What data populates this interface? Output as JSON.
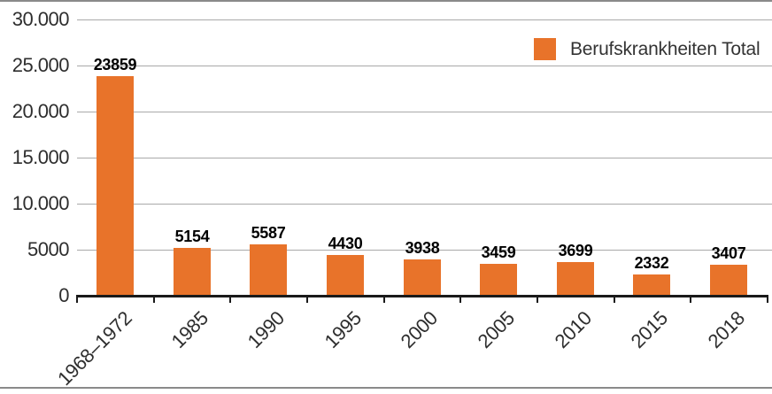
{
  "chart_data": {
    "type": "bar",
    "title": "",
    "xlabel": "",
    "ylabel": "",
    "categories": [
      "1968–1972",
      "1985",
      "1990",
      "1995",
      "2000",
      "2005",
      "2010",
      "2015",
      "2018"
    ],
    "values": [
      23859,
      5154,
      5587,
      4430,
      3938,
      3459,
      3699,
      2332,
      3407
    ],
    "value_labels": [
      "23859",
      "5154",
      "5587",
      "4430",
      "3938",
      "3459",
      "3699",
      "2332",
      "3407"
    ],
    "legend": "Berufskrankheiten Total",
    "legend_position": "top-right",
    "ylim": [
      0,
      30000
    ],
    "ytick_interval": 5000,
    "ytick_values": [
      0,
      5000,
      10000,
      15000,
      20000,
      25000,
      30000
    ],
    "ytick_labels": [
      "0",
      "5000",
      "10.000",
      "15.000",
      "20.000",
      "25.000",
      "30.000"
    ],
    "grid": true,
    "bar_color": "#e8732a",
    "gridline_color": "#a9a9a9",
    "axis_color": "#1a1a1a",
    "frame_border_color": "#8a8a8a"
  }
}
